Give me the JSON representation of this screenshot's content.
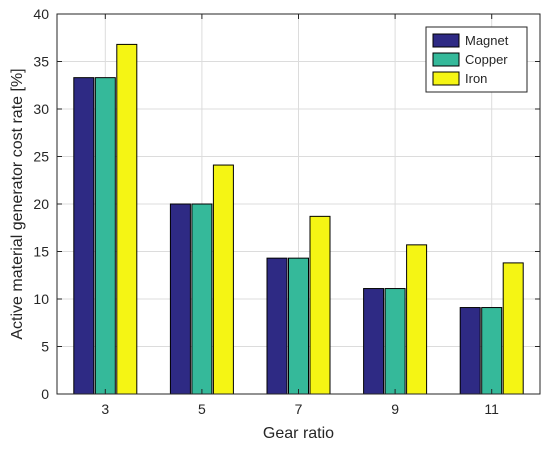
{
  "chart_data": {
    "type": "bar",
    "title": "",
    "xlabel": "Gear ratio",
    "ylabel": "Active material generator cost rate [%]",
    "categories": [
      "3",
      "5",
      "7",
      "9",
      "11"
    ],
    "series": [
      {
        "name": "Magnet",
        "color": "#2e2a84",
        "values": [
          33.3,
          20.0,
          14.3,
          11.1,
          9.1
        ]
      },
      {
        "name": "Copper",
        "color": "#35b99a",
        "values": [
          33.3,
          20.0,
          14.3,
          11.1,
          9.1
        ]
      },
      {
        "name": "Iron",
        "color": "#f5f514",
        "values": [
          36.8,
          24.1,
          18.7,
          15.7,
          13.8
        ]
      }
    ],
    "ylim": [
      0,
      40
    ],
    "yticks": [
      0,
      5,
      10,
      15,
      20,
      25,
      30,
      35,
      40
    ],
    "grid": true,
    "legend_position": "top-right"
  }
}
